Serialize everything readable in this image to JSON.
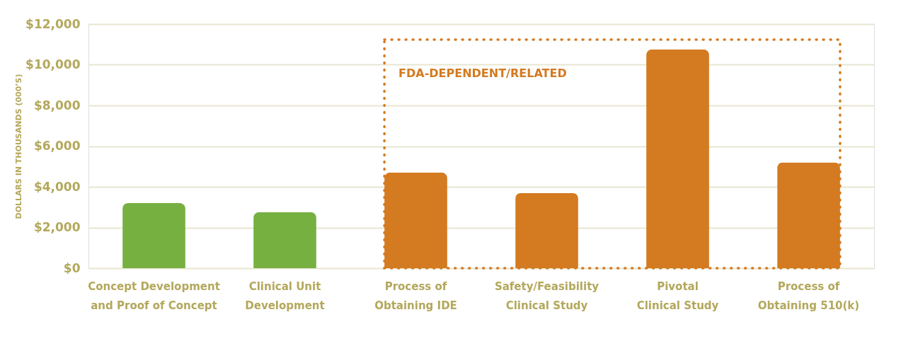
{
  "chart_data": {
    "type": "bar",
    "ylabel": "DOLLARS IN THOUSANDS (000’S)",
    "categories": [
      "Concept Development and Proof of Concept",
      "Clinical Unit Development",
      "Process of Obtaining IDE",
      "Safety/Feasibility Clinical Study",
      "Pivotal Clinical Study",
      "Process of Obtaining 510(k)"
    ],
    "values": [
      3200,
      2750,
      4700,
      3700,
      10750,
      5200
    ],
    "colors": [
      "#76b041",
      "#76b041",
      "#d47a20",
      "#d47a20",
      "#d47a20",
      "#d47a20"
    ],
    "ylim": [
      0,
      12000
    ],
    "yticks": [
      {
        "value": 0,
        "label": "$0"
      },
      {
        "value": 2000,
        "label": "$2,000"
      },
      {
        "value": 4000,
        "label": "$4,000"
      },
      {
        "value": 6000,
        "label": "$6,000"
      },
      {
        "value": 8000,
        "label": "$8,000"
      },
      {
        "value": 10000,
        "label": "$10,000"
      },
      {
        "value": 12000,
        "label": "$12,000"
      }
    ],
    "grid": "y",
    "annotations": [
      "FDA-DEPENDENT/RELATED"
    ]
  }
}
